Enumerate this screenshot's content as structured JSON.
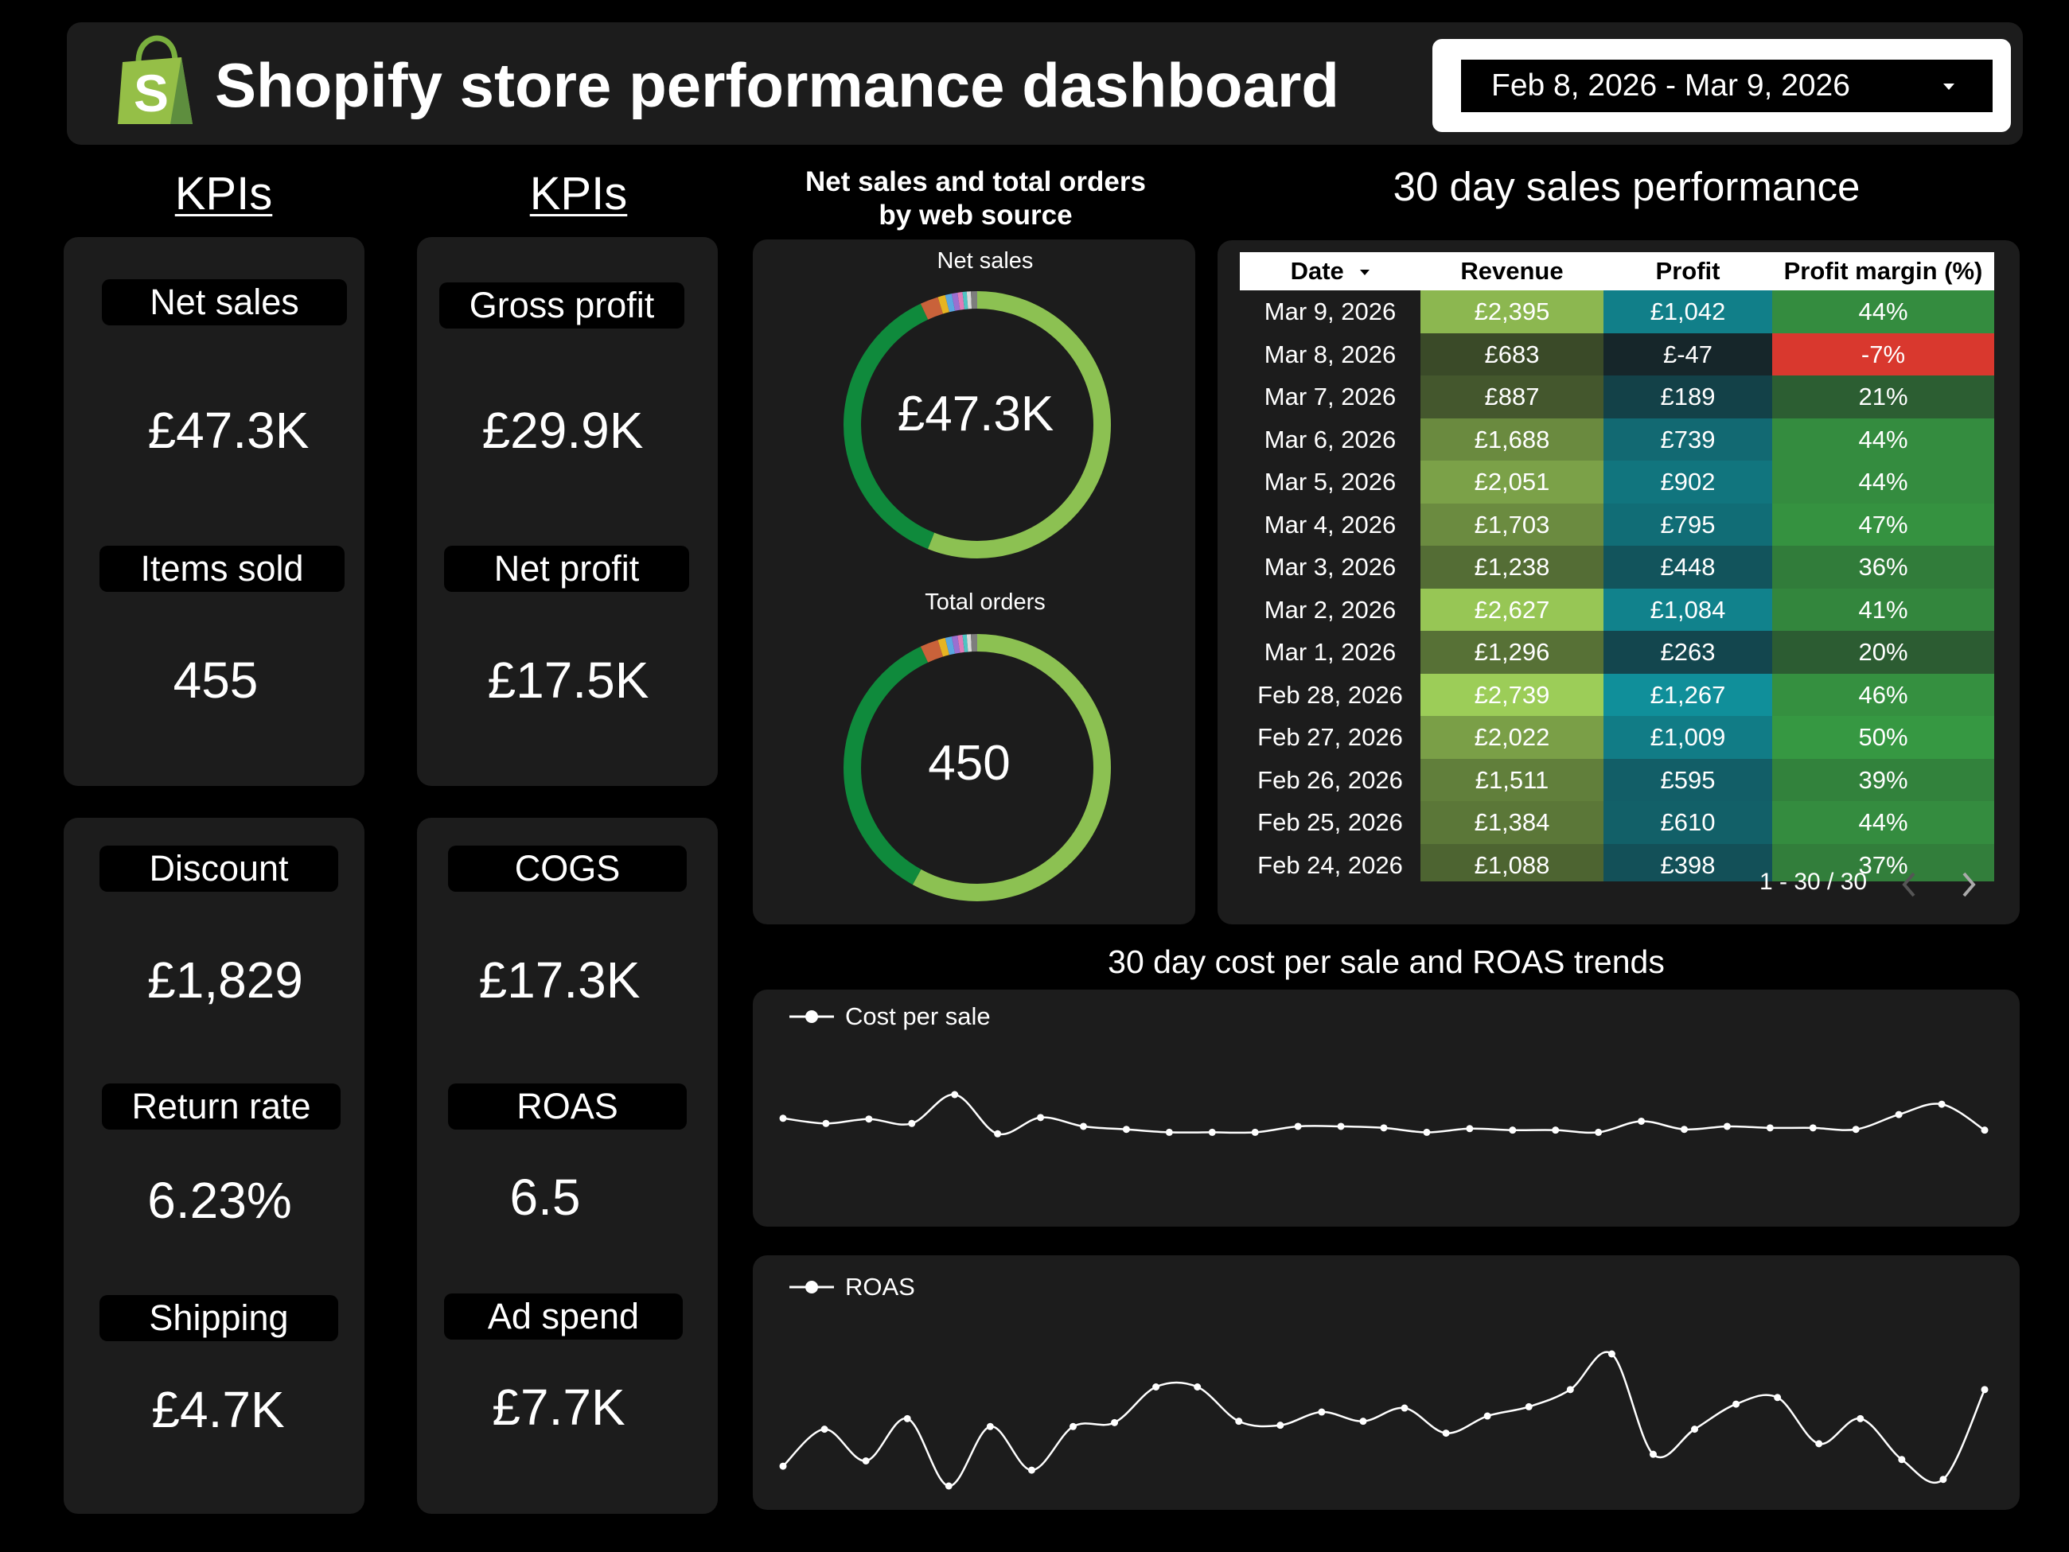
{
  "header": {
    "title": "Shopify store performance dashboard",
    "date_range": "Feb 8, 2026 - Mar 9, 2026",
    "logo_icon": "shopify-bag-icon",
    "brand_color": "#95bf47"
  },
  "kpi_columns": [
    {
      "heading": "KPIs"
    },
    {
      "heading": "KPIs"
    }
  ],
  "kpis": {
    "net_sales": {
      "label": "Net sales",
      "value": "£47.3K"
    },
    "items_sold": {
      "label": "Items sold",
      "value": "455"
    },
    "gross_profit": {
      "label": "Gross profit",
      "value": "£29.9K"
    },
    "net_profit": {
      "label": "Net profit",
      "value": "£17.5K"
    },
    "discount": {
      "label": "Discount",
      "value": "£1,829"
    },
    "return_rate": {
      "label": "Return rate",
      "value": "6.23%"
    },
    "shipping": {
      "label": "Shipping",
      "value": "£4.7K"
    },
    "cogs": {
      "label": "COGS",
      "value": "£17.3K"
    },
    "roas": {
      "label": "ROAS",
      "value": "6.5"
    },
    "ad_spend": {
      "label": "Ad spend",
      "value": "£7.7K"
    }
  },
  "donut_section": {
    "title_line1": "Net sales and total orders",
    "title_line2": "by web source"
  },
  "table_section": {
    "title": "30 day sales performance",
    "sort_icon": "sort-down-icon",
    "pager_text": "1 - 30 / 30",
    "prev_icon": "chevron-left-icon",
    "next_icon": "chevron-right-icon"
  },
  "trend_section": {
    "title": "30 day cost per sale and ROAS trends"
  },
  "chart_data": [
    {
      "type": "pie",
      "title": "Net sales",
      "center_value": "£47.3K",
      "slices": [
        {
          "value": 56.0,
          "color": "#8cc152"
        },
        {
          "value": 37.0,
          "color": "#0f8a3c"
        },
        {
          "value": 2.2,
          "color": "#c9623a"
        },
        {
          "value": 0.9,
          "color": "#e6b422"
        },
        {
          "value": 0.8,
          "color": "#5aa7e0"
        },
        {
          "value": 0.7,
          "color": "#9b6fd1"
        },
        {
          "value": 0.6,
          "color": "#e07ab8"
        },
        {
          "value": 0.5,
          "color": "#4fc3c3"
        },
        {
          "value": 0.5,
          "color": "#d9d9d9"
        },
        {
          "value": 0.8,
          "color": "#7d7d7d"
        }
      ]
    },
    {
      "type": "pie",
      "title": "Total orders",
      "center_value": "450",
      "slices": [
        {
          "value": 58.0,
          "color": "#8cc152"
        },
        {
          "value": 35.0,
          "color": "#0f8a3c"
        },
        {
          "value": 2.2,
          "color": "#c9623a"
        },
        {
          "value": 0.9,
          "color": "#e6b422"
        },
        {
          "value": 0.8,
          "color": "#5aa7e0"
        },
        {
          "value": 0.7,
          "color": "#9b6fd1"
        },
        {
          "value": 0.6,
          "color": "#e07ab8"
        },
        {
          "value": 0.5,
          "color": "#4fc3c3"
        },
        {
          "value": 0.5,
          "color": "#d9d9d9"
        },
        {
          "value": 0.8,
          "color": "#7d7d7d"
        }
      ]
    },
    {
      "type": "table",
      "columns": [
        "Date",
        "Revenue",
        "Profit",
        "Profit margin (%)"
      ],
      "rows": [
        {
          "date": "Mar 9, 2026",
          "revenue": "£2,395",
          "profit": "£1,042",
          "margin": "44%",
          "rev_v": 2395,
          "pro_v": 1042,
          "mar_v": 44
        },
        {
          "date": "Mar 8, 2026",
          "revenue": "£683",
          "profit": "£-47",
          "margin": "-7%",
          "rev_v": 683,
          "pro_v": -47,
          "mar_v": -7
        },
        {
          "date": "Mar 7, 2026",
          "revenue": "£887",
          "profit": "£189",
          "margin": "21%",
          "rev_v": 887,
          "pro_v": 189,
          "mar_v": 21
        },
        {
          "date": "Mar 6, 2026",
          "revenue": "£1,688",
          "profit": "£739",
          "margin": "44%",
          "rev_v": 1688,
          "pro_v": 739,
          "mar_v": 44
        },
        {
          "date": "Mar 5, 2026",
          "revenue": "£2,051",
          "profit": "£902",
          "margin": "44%",
          "rev_v": 2051,
          "pro_v": 902,
          "mar_v": 44
        },
        {
          "date": "Mar 4, 2026",
          "revenue": "£1,703",
          "profit": "£795",
          "margin": "47%",
          "rev_v": 1703,
          "pro_v": 795,
          "mar_v": 47
        },
        {
          "date": "Mar 3, 2026",
          "revenue": "£1,238",
          "profit": "£448",
          "margin": "36%",
          "rev_v": 1238,
          "pro_v": 448,
          "mar_v": 36
        },
        {
          "date": "Mar 2, 2026",
          "revenue": "£2,627",
          "profit": "£1,084",
          "margin": "41%",
          "rev_v": 2627,
          "pro_v": 1084,
          "mar_v": 41
        },
        {
          "date": "Mar 1, 2026",
          "revenue": "£1,296",
          "profit": "£263",
          "margin": "20%",
          "rev_v": 1296,
          "pro_v": 263,
          "mar_v": 20
        },
        {
          "date": "Feb 28, 2026",
          "revenue": "£2,739",
          "profit": "£1,267",
          "margin": "46%",
          "rev_v": 2739,
          "pro_v": 1267,
          "mar_v": 46
        },
        {
          "date": "Feb 27, 2026",
          "revenue": "£2,022",
          "profit": "£1,009",
          "margin": "50%",
          "rev_v": 2022,
          "pro_v": 1009,
          "mar_v": 50
        },
        {
          "date": "Feb 26, 2026",
          "revenue": "£1,511",
          "profit": "£595",
          "margin": "39%",
          "rev_v": 1511,
          "pro_v": 595,
          "mar_v": 39
        },
        {
          "date": "Feb 25, 2026",
          "revenue": "£1,384",
          "profit": "£610",
          "margin": "44%",
          "rev_v": 1384,
          "pro_v": 610,
          "mar_v": 44
        },
        {
          "date": "Feb 24, 2026",
          "revenue": "£1,088",
          "profit": "£398",
          "margin": "37%",
          "rev_v": 1088,
          "pro_v": 398,
          "mar_v": 37
        }
      ]
    },
    {
      "type": "line",
      "series": [
        {
          "name": "Cost per sale",
          "values": [
            0.68,
            0.61,
            0.67,
            0.61,
            1.0,
            0.47,
            0.69,
            0.57,
            0.53,
            0.49,
            0.49,
            0.49,
            0.57,
            0.57,
            0.55,
            0.49,
            0.54,
            0.52,
            0.52,
            0.49,
            0.64,
            0.53,
            0.57,
            0.55,
            0.55,
            0.53,
            0.73,
            0.87,
            0.52
          ]
        }
      ],
      "legend": "top-left",
      "grid": false
    },
    {
      "type": "line",
      "series": [
        {
          "name": "ROAS",
          "values": [
            0.15,
            0.43,
            0.19,
            0.51,
            0.0,
            0.45,
            0.12,
            0.45,
            0.48,
            0.75,
            0.75,
            0.49,
            0.46,
            0.56,
            0.49,
            0.59,
            0.4,
            0.53,
            0.6,
            0.73,
            1.0,
            0.24,
            0.43,
            0.62,
            0.67,
            0.32,
            0.51,
            0.2,
            0.05,
            0.73
          ]
        }
      ],
      "legend": "top-left",
      "grid": false
    }
  ]
}
